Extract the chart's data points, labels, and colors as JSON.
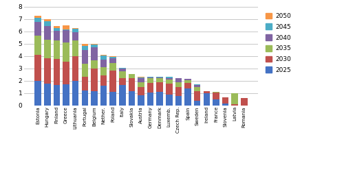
{
  "categories": [
    "Estonia",
    "Hungary",
    "Finland",
    "Greece",
    "Lithuania",
    "Portugal",
    "Belgium",
    "Nether.",
    "Poland",
    "Italy",
    "Slovakia",
    "Austria",
    "Germany",
    "Denmark",
    "Luxemb.",
    "Czech Rep.",
    "Spain",
    "Sweden",
    "Ireland",
    "France",
    "Slovenia",
    "Latvia",
    "Romania"
  ],
  "series": {
    "2025": [
      2.0,
      1.75,
      1.65,
      1.7,
      2.0,
      1.2,
      1.15,
      1.6,
      1.1,
      1.65,
      1.15,
      0.8,
      1.05,
      1.1,
      0.9,
      0.75,
      1.35,
      0.4,
      1.0,
      0.5,
      0.15,
      0.0,
      0.0
    ],
    "2030": [
      2.1,
      2.05,
      2.1,
      1.85,
      2.0,
      1.1,
      1.85,
      0.85,
      1.7,
      0.55,
      1.05,
      0.7,
      0.75,
      0.75,
      0.85,
      0.75,
      0.45,
      0.75,
      0.15,
      0.55,
      0.5,
      0.1,
      0.6
    ],
    "2035": [
      1.55,
      1.55,
      1.5,
      1.55,
      1.25,
      1.1,
      0.65,
      0.65,
      0.65,
      0.55,
      0.35,
      0.4,
      0.4,
      0.35,
      0.35,
      0.35,
      0.25,
      0.35,
      0.0,
      0.05,
      0.0,
      0.9,
      0.0
    ],
    "2040": [
      1.1,
      1.1,
      0.8,
      1.0,
      0.7,
      1.1,
      1.05,
      0.6,
      0.35,
      0.25,
      0.0,
      0.3,
      0.05,
      0.05,
      0.1,
      0.35,
      0.1,
      0.15,
      0.0,
      0.0,
      0.0,
      0.0,
      0.0
    ],
    "2045": [
      0.35,
      0.35,
      0.2,
      0.05,
      0.25,
      0.35,
      0.25,
      0.35,
      0.15,
      0.05,
      0.0,
      0.05,
      0.05,
      0.05,
      0.1,
      0.0,
      0.0,
      0.05,
      0.0,
      0.0,
      0.0,
      0.0,
      0.0
    ],
    "2050": [
      0.2,
      0.2,
      0.2,
      0.35,
      0.05,
      0.15,
      0.05,
      0.05,
      0.05,
      0.0,
      0.0,
      0.05,
      0.0,
      0.0,
      0.0,
      0.0,
      0.0,
      0.0,
      0.0,
      0.0,
      0.0,
      0.0,
      0.0
    ]
  },
  "colors": {
    "2025": "#4472C4",
    "2030": "#C0504D",
    "2035": "#9BBB59",
    "2040": "#8064A2",
    "2045": "#4BACC6",
    "2050": "#F79646"
  },
  "ylim": [
    0,
    8
  ],
  "yticks": [
    0,
    1,
    2,
    3,
    4,
    5,
    6,
    7,
    8
  ],
  "bar_width": 0.7,
  "fig_width": 5.0,
  "fig_height": 2.48,
  "dpi": 100
}
